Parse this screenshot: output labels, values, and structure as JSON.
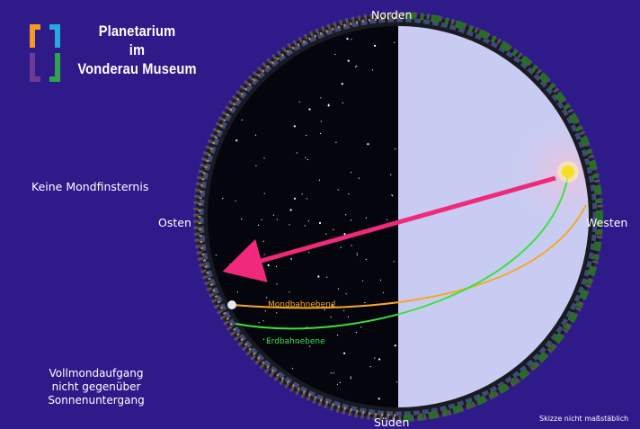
{
  "logo": {
    "line1": "Planetarium",
    "line2": "im",
    "line3": "Vonderau Museum",
    "colors": [
      "#f39a24",
      "#29a8e0",
      "#6e3a96",
      "#2ea34a"
    ]
  },
  "directions": {
    "north": "Norden",
    "east": "Osten",
    "west": "Westen",
    "south": "Süden"
  },
  "captions": {
    "no_eclipse": "Keine Mondfinsternis",
    "moonrise_line1": "Vollmondaufgang",
    "moonrise_line2": "nicht gegenüber",
    "moonrise_line3": "Sonnenuntergang",
    "scale_note": "Skizze nicht maßstäblich"
  },
  "orbits": {
    "moon_plane": "Mondbahnebene",
    "earth_plane": "Erdbahnebene",
    "moon_color": "#f6a829",
    "earth_color": "#3fe03f"
  },
  "colors": {
    "background": "#2f1a8a",
    "night_sky": "#05050e",
    "day_sky": "#c8ccf2",
    "arrow": "#f0297a"
  }
}
